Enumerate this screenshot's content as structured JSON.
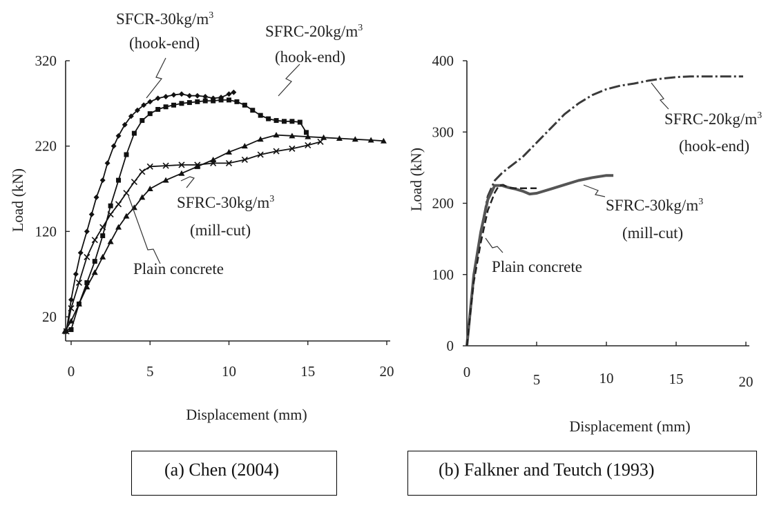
{
  "chart_data": [
    {
      "type": "line",
      "title": "",
      "xlabel": "Displacement (mm)",
      "ylabel": "Load (kN)",
      "xlim": [
        -0.5,
        20.5
      ],
      "ylim": [
        2,
        320
      ],
      "xticks": [
        "0",
        "5",
        "10",
        "15",
        "20"
      ],
      "yticks": [
        "20",
        "120",
        "220",
        "320"
      ],
      "series": [
        {
          "name": "SFCR-30kg/m³ (hook-end)",
          "marker": "diamond",
          "x": [
            -0.3,
            0,
            0.3,
            0.6,
            1,
            1.3,
            1.6,
            2,
            2.3,
            2.7,
            3,
            3.4,
            3.8,
            4.2,
            4.6,
            5,
            5.5,
            6,
            6.5,
            7,
            7.5,
            8,
            8.5,
            9,
            9.5,
            10,
            10.3
          ],
          "y": [
            3,
            40,
            70,
            95,
            120,
            140,
            160,
            180,
            200,
            220,
            232,
            245,
            255,
            262,
            268,
            272,
            276,
            278,
            280,
            281,
            279,
            279,
            278,
            276,
            277,
            281,
            283
          ]
        },
        {
          "name": "SFRC-20kg/m³ (hook-end)",
          "marker": "square",
          "x": [
            0,
            0.5,
            1,
            1.5,
            2,
            2.5,
            3,
            3.5,
            4,
            4.5,
            5,
            5.5,
            6,
            6.5,
            7,
            7.5,
            8,
            8.5,
            9,
            9.5,
            10,
            10.5,
            11,
            11.5,
            12,
            12.5,
            13,
            13.5,
            14,
            14.5,
            14.9
          ],
          "y": [
            5,
            35,
            60,
            85,
            115,
            150,
            180,
            210,
            235,
            250,
            258,
            263,
            266,
            268,
            270,
            271,
            272,
            273,
            273,
            274,
            274,
            272,
            268,
            262,
            256,
            252,
            250,
            249,
            249,
            248,
            236
          ]
        },
        {
          "name": "SFRC-30kg/m³ (mill-cut)",
          "marker": "triangle",
          "x": [
            -0.4,
            0,
            0.5,
            1,
            1.5,
            2,
            2.5,
            3,
            3.5,
            4,
            4.5,
            5,
            6,
            7,
            8,
            9,
            10,
            11,
            12,
            13,
            14,
            15,
            16,
            17,
            18,
            19,
            19.8
          ],
          "y": [
            3,
            15,
            35,
            55,
            72,
            90,
            108,
            125,
            138,
            148,
            160,
            170,
            180,
            188,
            196,
            204,
            213,
            220,
            228,
            233,
            232,
            231,
            230,
            229,
            228,
            227,
            226
          ]
        },
        {
          "name": "Plain concrete",
          "marker": "x",
          "x": [
            -0.3,
            0,
            0.5,
            1,
            1.5,
            2,
            2.5,
            3,
            3.5,
            4,
            4.5,
            5,
            6,
            7,
            8,
            9,
            10,
            11,
            12,
            13,
            14,
            15,
            15.8
          ],
          "y": [
            3,
            30,
            60,
            90,
            110,
            125,
            140,
            152,
            165,
            178,
            190,
            196,
            197,
            198,
            198,
            200,
            200,
            204,
            210,
            214,
            217,
            221,
            225
          ]
        }
      ],
      "annotations": [
        {
          "lines": [
            "SFCR-30kg/m",
            "(hook-end)"
          ],
          "sup": "3"
        },
        {
          "lines": [
            "SFRC-20kg/m",
            "(hook-end)"
          ],
          "sup": "3"
        },
        {
          "lines": [
            "SFRC-30kg/m",
            "(mill-cut)"
          ],
          "sup": "3"
        },
        {
          "lines": [
            "Plain concrete"
          ],
          "sup": ""
        }
      ],
      "grid": false,
      "legend": "none"
    },
    {
      "type": "line",
      "title": "",
      "xlabel": "Displacement (mm)",
      "ylabel": "Load (kN)",
      "xlim": [
        0,
        20
      ],
      "ylim": [
        0,
        400
      ],
      "xticks": [
        "0",
        "5",
        "10",
        "15",
        "20"
      ],
      "yticks": [
        "0",
        "100",
        "200",
        "300",
        "400"
      ],
      "series": [
        {
          "name": "SFRC-20kg/m³ (hook-end)",
          "style": "dash-dot",
          "x": [
            0,
            0.5,
            1,
            1.5,
            2,
            2.5,
            3,
            4,
            5,
            6,
            7,
            8,
            9,
            10,
            11,
            12,
            13,
            14,
            15,
            16,
            17,
            18,
            19,
            19.8
          ],
          "y": [
            0,
            100,
            160,
            210,
            232,
            242,
            250,
            265,
            285,
            305,
            325,
            340,
            352,
            360,
            365,
            368,
            372,
            375,
            377,
            378,
            378,
            378,
            378,
            378
          ]
        },
        {
          "name": "SFRC-30kg/m³ (mill-cut)",
          "style": "solid",
          "x": [
            0,
            0.5,
            1,
            1.5,
            2,
            2.5,
            3,
            3.5,
            4,
            4.5,
            5,
            6,
            7,
            8,
            9,
            10,
            10.5
          ],
          "y": [
            0,
            100,
            160,
            205,
            225,
            225,
            222,
            220,
            217,
            213,
            214,
            220,
            226,
            232,
            236,
            239,
            239
          ]
        },
        {
          "name": "Plain concrete",
          "style": "dashed",
          "x": [
            0,
            0.5,
            1,
            1.5,
            2,
            2.3,
            2.6,
            3,
            3.5,
            4,
            4.5,
            5
          ],
          "y": [
            0,
            90,
            145,
            190,
            215,
            225,
            226,
            222,
            221,
            221,
            221,
            221
          ]
        }
      ],
      "annotations": [
        {
          "lines": [
            "SFRC-20kg/m",
            "(hook-end)"
          ],
          "sup": "3"
        },
        {
          "lines": [
            "SFRC-30kg/m",
            "(mill-cut)"
          ],
          "sup": "3"
        },
        {
          "lines": [
            "Plain concrete"
          ],
          "sup": ""
        }
      ],
      "grid": false,
      "legend": "none"
    }
  ],
  "captions": {
    "a": "(a)  Chen (2004)",
    "b": "(b) Falkner and Teutch (1993)"
  }
}
